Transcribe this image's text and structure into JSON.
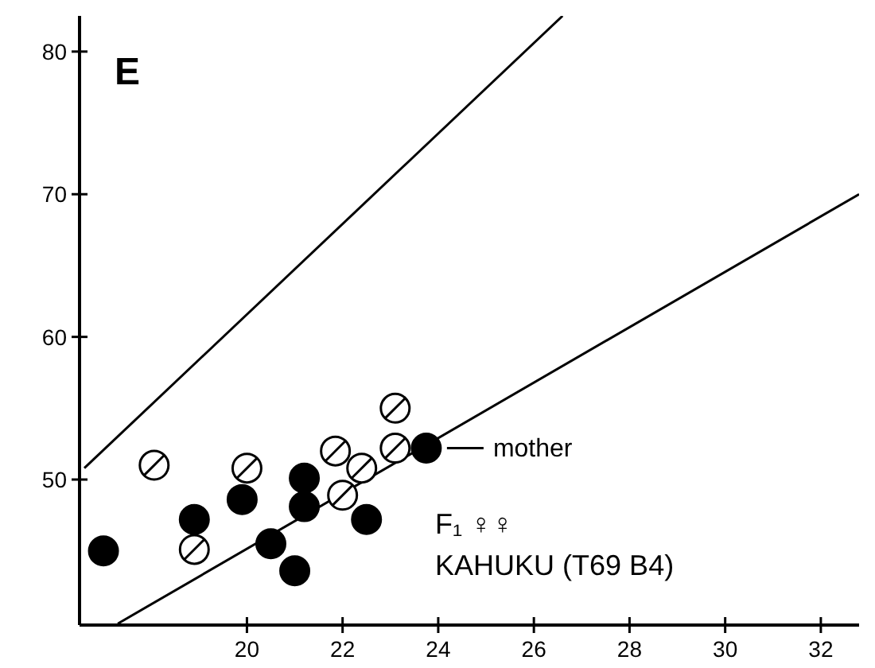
{
  "chart_data": {
    "type": "scatter",
    "title": "E",
    "xlim": [
      16.5,
      32.8
    ],
    "xticks": [
      20,
      22,
      24,
      26,
      28,
      30,
      32
    ],
    "ylim": [
      39.8,
      82.5
    ],
    "yticks": [
      50,
      60,
      70,
      80
    ],
    "grid": false,
    "series": [
      {
        "marker": "circle",
        "color": "#000000",
        "x": [
          17.0,
          18.9,
          19.9,
          20.5,
          21.0,
          21.2,
          21.2,
          22.5,
          23.75
        ],
        "values": [
          45.0,
          47.2,
          48.6,
          45.5,
          43.6,
          50.1,
          48.1,
          47.2,
          52.2
        ]
      },
      {
        "marker": "circle",
        "color": "#ffffff",
        "x": [
          18.06,
          18.9,
          20.0,
          21.85,
          22.0,
          22.4,
          23.1,
          23.1
        ],
        "values": [
          51.0,
          45.1,
          50.8,
          52.0,
          48.9,
          50.8,
          55.0,
          52.2
        ]
      },
      {
        "type": "line",
        "color": "#000000",
        "x": [
          16.6,
          26.6
        ],
        "values": [
          50.8,
          82.5
        ]
      },
      {
        "type": "line",
        "color": "#000000",
        "x": [
          17.3,
          32.8
        ],
        "values": [
          39.9,
          70.0
        ]
      }
    ],
    "annotations": [
      {
        "text": "mother",
        "x": 23.75,
        "y": 52.2
      },
      "F₁ ♀♀",
      "KAHUKU (T69 B4)"
    ]
  }
}
